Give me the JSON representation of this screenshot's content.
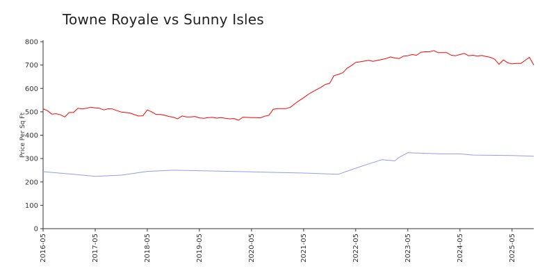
{
  "chart_data": {
    "type": "line",
    "title": "Towne Royale vs Sunny Isles",
    "xlabel": "",
    "ylabel": "Price Per Sq Ft",
    "ylim": [
      0,
      800
    ],
    "yticks": [
      0,
      100,
      200,
      300,
      400,
      500,
      600,
      700,
      800
    ],
    "xlim": [
      "2016-05",
      "2025-10"
    ],
    "xtick_labels": [
      "2016-05",
      "2017-05",
      "2018-05",
      "2019-05",
      "2020-05",
      "2021-05",
      "2022-05",
      "2023-05",
      "2024-05",
      "2025-05"
    ],
    "grid": false,
    "legend": "none",
    "series": [
      {
        "color": "#ff0000",
        "points": [
          [
            "2016-05",
            513
          ],
          [
            "2016-06",
            505
          ],
          [
            "2016-07",
            490
          ],
          [
            "2016-08",
            492
          ],
          [
            "2016-09",
            487
          ],
          [
            "2016-10",
            478
          ],
          [
            "2016-11",
            497
          ],
          [
            "2016-12",
            497
          ],
          [
            "2017-01",
            515
          ],
          [
            "2017-02",
            512
          ],
          [
            "2017-03",
            515
          ],
          [
            "2017-04",
            520
          ],
          [
            "2017-05",
            517
          ],
          [
            "2017-06",
            515
          ],
          [
            "2017-07",
            508
          ],
          [
            "2017-08",
            513
          ],
          [
            "2017-09",
            512
          ],
          [
            "2017-10",
            505
          ],
          [
            "2017-11",
            499
          ],
          [
            "2017-12",
            497
          ],
          [
            "2018-01",
            495
          ],
          [
            "2018-02",
            488
          ],
          [
            "2018-03",
            482
          ],
          [
            "2018-04",
            483
          ],
          [
            "2018-05",
            508
          ],
          [
            "2018-06",
            500
          ],
          [
            "2018-07",
            489
          ],
          [
            "2018-08",
            489
          ],
          [
            "2018-09",
            485
          ],
          [
            "2018-10",
            480
          ],
          [
            "2018-11",
            477
          ],
          [
            "2018-12",
            470
          ],
          [
            "2019-01",
            482
          ],
          [
            "2019-02",
            478
          ],
          [
            "2019-03",
            478
          ],
          [
            "2019-04",
            480
          ],
          [
            "2019-05",
            474
          ],
          [
            "2019-06",
            472
          ],
          [
            "2019-07",
            475
          ],
          [
            "2019-08",
            476
          ],
          [
            "2019-09",
            473
          ],
          [
            "2019-10",
            475
          ],
          [
            "2019-11",
            472
          ],
          [
            "2019-12",
            470
          ],
          [
            "2020-01",
            471
          ],
          [
            "2020-02",
            464
          ],
          [
            "2020-03",
            477
          ],
          [
            "2020-04",
            476
          ],
          [
            "2020-05",
            475
          ],
          [
            "2020-06",
            475
          ],
          [
            "2020-07",
            474
          ],
          [
            "2020-08",
            481
          ],
          [
            "2020-09",
            485
          ],
          [
            "2020-10",
            511
          ],
          [
            "2020-11",
            514
          ],
          [
            "2020-12",
            514
          ],
          [
            "2021-01",
            514
          ],
          [
            "2021-02",
            520
          ],
          [
            "2021-03",
            535
          ],
          [
            "2021-04",
            548
          ],
          [
            "2021-05",
            560
          ],
          [
            "2021-06",
            574
          ],
          [
            "2021-07",
            585
          ],
          [
            "2021-08",
            595
          ],
          [
            "2021-09",
            605
          ],
          [
            "2021-10",
            617
          ],
          [
            "2021-11",
            622
          ],
          [
            "2021-12",
            655
          ],
          [
            "2022-01",
            660
          ],
          [
            "2022-02",
            667
          ],
          [
            "2022-03",
            686
          ],
          [
            "2022-04",
            698
          ],
          [
            "2022-05",
            711
          ],
          [
            "2022-06",
            714
          ],
          [
            "2022-07",
            717
          ],
          [
            "2022-08",
            720
          ],
          [
            "2022-09",
            716
          ],
          [
            "2022-10",
            720
          ],
          [
            "2022-11",
            724
          ],
          [
            "2022-12",
            728
          ],
          [
            "2023-01",
            735
          ],
          [
            "2023-02",
            730
          ],
          [
            "2023-03",
            728
          ],
          [
            "2023-04",
            738
          ],
          [
            "2023-05",
            740
          ],
          [
            "2023-06",
            745
          ],
          [
            "2023-07",
            742
          ],
          [
            "2023-08",
            755
          ],
          [
            "2023-09",
            757
          ],
          [
            "2023-10",
            757
          ],
          [
            "2023-11",
            762
          ],
          [
            "2023-12",
            753
          ],
          [
            "2024-01",
            753
          ],
          [
            "2024-02",
            753
          ],
          [
            "2024-03",
            742
          ],
          [
            "2024-04",
            740
          ],
          [
            "2024-05",
            745
          ],
          [
            "2024-06",
            750
          ],
          [
            "2024-07",
            740
          ],
          [
            "2024-08",
            742
          ],
          [
            "2024-09",
            738
          ],
          [
            "2024-10",
            741
          ],
          [
            "2024-11",
            737
          ],
          [
            "2024-12",
            733
          ],
          [
            "2025-01",
            725
          ],
          [
            "2025-02",
            703
          ],
          [
            "2025-03",
            722
          ],
          [
            "2025-04",
            710
          ],
          [
            "2025-05",
            705
          ],
          [
            "2025-06",
            707
          ],
          [
            "2025-07",
            707
          ],
          [
            "2025-08",
            720
          ],
          [
            "2025-09",
            733
          ],
          [
            "2025-10",
            700
          ]
        ]
      },
      {
        "color": "#9999ee",
        "points": [
          [
            "2016-05",
            244
          ],
          [
            "2016-12",
            233
          ],
          [
            "2017-05",
            224
          ],
          [
            "2017-11",
            229
          ],
          [
            "2018-05",
            245
          ],
          [
            "2018-11",
            250
          ],
          [
            "2019-05",
            248
          ],
          [
            "2020-05",
            243
          ],
          [
            "2021-05",
            238
          ],
          [
            "2022-01",
            233
          ],
          [
            "2022-06",
            265
          ],
          [
            "2022-09",
            283
          ],
          [
            "2022-11",
            295
          ],
          [
            "2023-02",
            290
          ],
          [
            "2023-03",
            305
          ],
          [
            "2023-05",
            325
          ],
          [
            "2024-01",
            320
          ],
          [
            "2024-05",
            320
          ],
          [
            "2024-08",
            315
          ],
          [
            "2025-05",
            313
          ],
          [
            "2025-10",
            310
          ]
        ]
      }
    ]
  }
}
